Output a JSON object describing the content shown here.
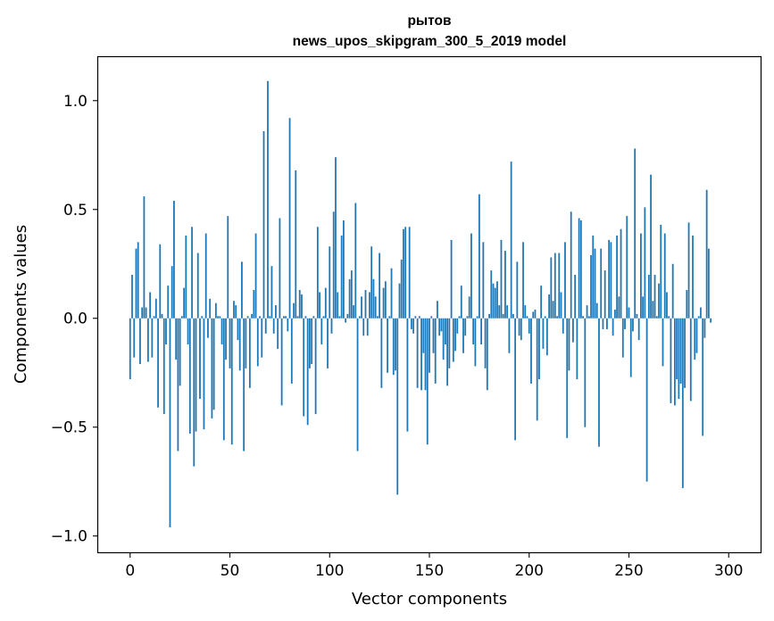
{
  "chart_data": {
    "type": "bar",
    "title_line1": "рытов",
    "title_line2": "news_upos_skipgram_300_5_2019 model",
    "xlabel": "Vector components",
    "ylabel": "Components values",
    "xlim": [
      -16,
      316
    ],
    "ylim": [
      -1.075,
      1.2
    ],
    "xticks": [
      0,
      50,
      100,
      150,
      200,
      250,
      300
    ],
    "xtick_labels": [
      "0",
      "50",
      "100",
      "150",
      "200",
      "250",
      "300"
    ],
    "yticks": [
      -1.0,
      -0.5,
      0.0,
      0.5,
      1.0
    ],
    "ytick_labels": [
      "−1.0",
      "−0.5",
      "0.0",
      "0.5",
      "1.0"
    ],
    "bar_color": "#1f77b4",
    "bar_width": 0.8,
    "series": [
      {
        "name": "рытов",
        "values": [
          -0.28,
          0.2,
          -0.18,
          0.32,
          0.35,
          -0.21,
          0.05,
          0.56,
          0.05,
          -0.2,
          0.12,
          -0.18,
          0.01,
          0.09,
          -0.41,
          0.34,
          0.02,
          -0.44,
          -0.12,
          0.15,
          -0.96,
          0.24,
          0.54,
          -0.19,
          -0.61,
          -0.31,
          0.01,
          0.14,
          0.38,
          -0.12,
          -0.53,
          0.42,
          -0.68,
          -0.52,
          0.3,
          -0.37,
          0.01,
          -0.51,
          0.39,
          -0.09,
          0.09,
          -0.46,
          -0.42,
          0.07,
          0.01,
          0.01,
          -0.12,
          -0.56,
          -0.19,
          0.47,
          -0.23,
          -0.58,
          0.08,
          0.06,
          -0.1,
          -0.24,
          0.26,
          -0.61,
          -0.23,
          0.01,
          -0.32,
          0.02,
          0.13,
          0.39,
          -0.22,
          0.01,
          -0.18,
          0.86,
          -0.07,
          1.09,
          0.01,
          0.24,
          -0.07,
          0.06,
          -0.14,
          0.46,
          -0.4,
          0.01,
          0.01,
          -0.06,
          0.92,
          -0.3,
          0.07,
          0.68,
          0.01,
          0.13,
          0.11,
          -0.45,
          0.01,
          -0.49,
          -0.23,
          -0.21,
          0.01,
          -0.44,
          0.42,
          0.12,
          -0.12,
          0.01,
          0.14,
          -0.23,
          0.33,
          -0.07,
          0.49,
          0.74,
          0.12,
          0.01,
          0.38,
          0.45,
          -0.02,
          0.02,
          0.18,
          0.22,
          0.06,
          0.53,
          -0.61,
          0.01,
          0.1,
          -0.08,
          0.13,
          -0.08,
          0.12,
          0.33,
          0.18,
          0.1,
          0.01,
          0.3,
          -0.32,
          0.14,
          0.17,
          -0.25,
          0.01,
          0.23,
          -0.26,
          -0.24,
          -0.81,
          0.16,
          0.27,
          0.41,
          0.42,
          -0.52,
          0.42,
          -0.05,
          -0.07,
          0.01,
          -0.32,
          0.01,
          -0.33,
          -0.16,
          -0.33,
          -0.58,
          -0.25,
          0.01,
          -0.16,
          -0.3,
          0.08,
          -0.08,
          -0.06,
          -0.19,
          -0.12,
          -0.31,
          -0.23,
          0.36,
          -0.2,
          -0.15,
          -0.07,
          0.01,
          0.15,
          -0.16,
          -0.08,
          0.01,
          0.1,
          0.39,
          -0.12,
          -0.22,
          0.01,
          0.57,
          -0.12,
          0.35,
          -0.23,
          -0.33,
          0.02,
          0.22,
          0.16,
          0.14,
          0.17,
          0.06,
          0.36,
          0.02,
          0.31,
          0.06,
          -0.16,
          0.72,
          0.02,
          -0.56,
          0.26,
          -0.08,
          -0.1,
          0.35,
          0.06,
          0.01,
          -0.07,
          -0.3,
          0.03,
          0.04,
          -0.47,
          -0.28,
          0.15,
          -0.14,
          0.01,
          -0.17,
          0.11,
          0.28,
          0.08,
          0.3,
          0.01,
          0.3,
          0.12,
          -0.07,
          0.35,
          -0.55,
          -0.24,
          0.49,
          -0.11,
          0.2,
          -0.28,
          0.46,
          0.45,
          0.01,
          -0.5,
          0.06,
          0.01,
          0.29,
          0.38,
          0.32,
          0.07,
          -0.59,
          0.32,
          -0.05,
          0.22,
          -0.05,
          0.36,
          0.35,
          -0.08,
          0.04,
          0.38,
          0.1,
          0.41,
          -0.18,
          -0.05,
          0.47,
          0.05,
          -0.27,
          -0.06,
          0.78,
          0.02,
          -0.1,
          0.39,
          0.1,
          0.51,
          -0.75,
          0.2,
          0.66,
          0.08,
          0.2,
          0.01,
          0.16,
          0.43,
          -0.22,
          0.39,
          0.12,
          0.01,
          -0.39,
          0.25,
          -0.4,
          -0.28,
          -0.37,
          -0.3,
          -0.78,
          -0.32,
          0.13,
          0.44,
          -0.38,
          0.38,
          -0.19,
          -0.16,
          0.01,
          0.05,
          -0.54,
          -0.09,
          0.59,
          0.32,
          -0.02
        ]
      }
    ]
  }
}
